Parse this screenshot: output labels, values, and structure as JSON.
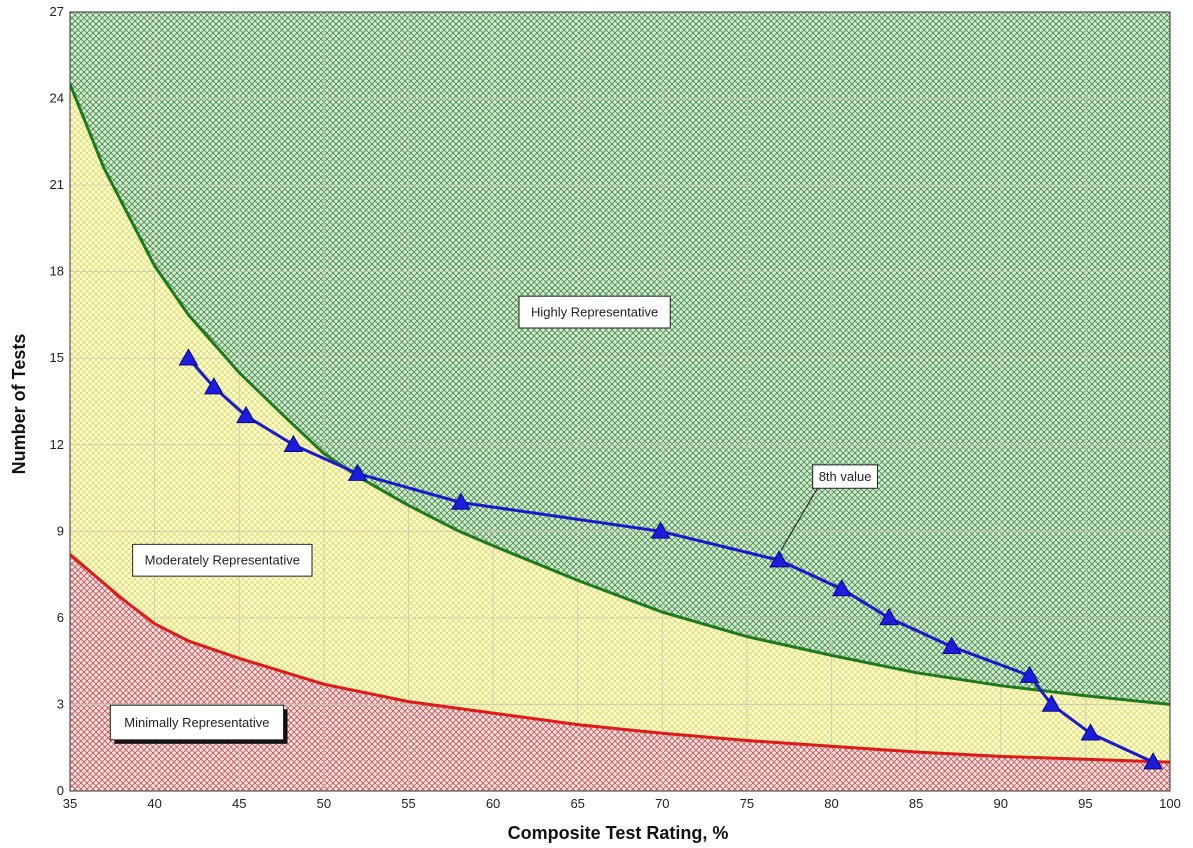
{
  "chart_data": {
    "type": "line",
    "xlabel": "Composite Test Rating, %",
    "ylabel": "Number of Tests",
    "xlim": [
      35,
      100
    ],
    "ylim": [
      0,
      27
    ],
    "x_ticks": [
      35,
      40,
      45,
      50,
      55,
      60,
      65,
      70,
      75,
      80,
      85,
      90,
      95,
      100
    ],
    "y_ticks": [
      0,
      3,
      6,
      9,
      12,
      15,
      18,
      21,
      24,
      27
    ],
    "grid": true,
    "series": [
      {
        "color": "#1a1acc",
        "marker": "triangle",
        "x": [
          42.0,
          43.5,
          45.4,
          48.2,
          52.0,
          58.1,
          69.9,
          76.9,
          80.6,
          83.4,
          87.1,
          91.7,
          93.0,
          95.3,
          99.0
        ],
        "y": [
          15,
          14,
          13,
          12,
          11,
          10,
          9,
          8,
          7,
          6,
          5,
          4,
          3,
          2,
          1
        ]
      },
      {
        "color": "#1f7a1f",
        "x": [
          35,
          37,
          40,
          42,
          45,
          48,
          50,
          52,
          55,
          58,
          60,
          65,
          70,
          75,
          80,
          85,
          90,
          95,
          100
        ],
        "y": [
          24.5,
          21.6,
          18.2,
          16.5,
          14.5,
          12.8,
          11.7,
          10.9,
          9.9,
          9.0,
          8.5,
          7.3,
          6.2,
          5.35,
          4.7,
          4.1,
          3.65,
          3.3,
          3.0
        ]
      },
      {
        "color": "#e01a1a",
        "x": [
          35,
          38,
          40,
          42,
          45,
          50,
          55,
          60,
          65,
          70,
          75,
          80,
          85,
          90,
          95,
          100
        ],
        "y": [
          8.2,
          6.7,
          5.8,
          5.2,
          4.6,
          3.7,
          3.1,
          2.7,
          2.3,
          2.0,
          1.75,
          1.55,
          1.35,
          1.2,
          1.1,
          1.0
        ]
      }
    ],
    "regions": [
      {
        "label": "Highly Representative",
        "fill": "#3f8a3f",
        "bg": "#d6ead6"
      },
      {
        "label": "Moderately Representative",
        "fill": "#d9d96a",
        "bg": "#ffffd2"
      },
      {
        "label": "Minimally Representative",
        "fill": "#b85555",
        "bg": "#f6dede"
      }
    ],
    "annotations": [
      {
        "text": "Highly Representative",
        "anchor": [
          66,
          16.6
        ]
      },
      {
        "text": "Moderately Representative",
        "anchor": [
          44,
          8
        ]
      },
      {
        "text": "Minimally Representative",
        "anchor": [
          42.5,
          2.4
        ]
      },
      {
        "text": "8th value",
        "anchor": [
          80.8,
          10.9
        ],
        "points_to": [
          76.9,
          8
        ]
      }
    ]
  }
}
